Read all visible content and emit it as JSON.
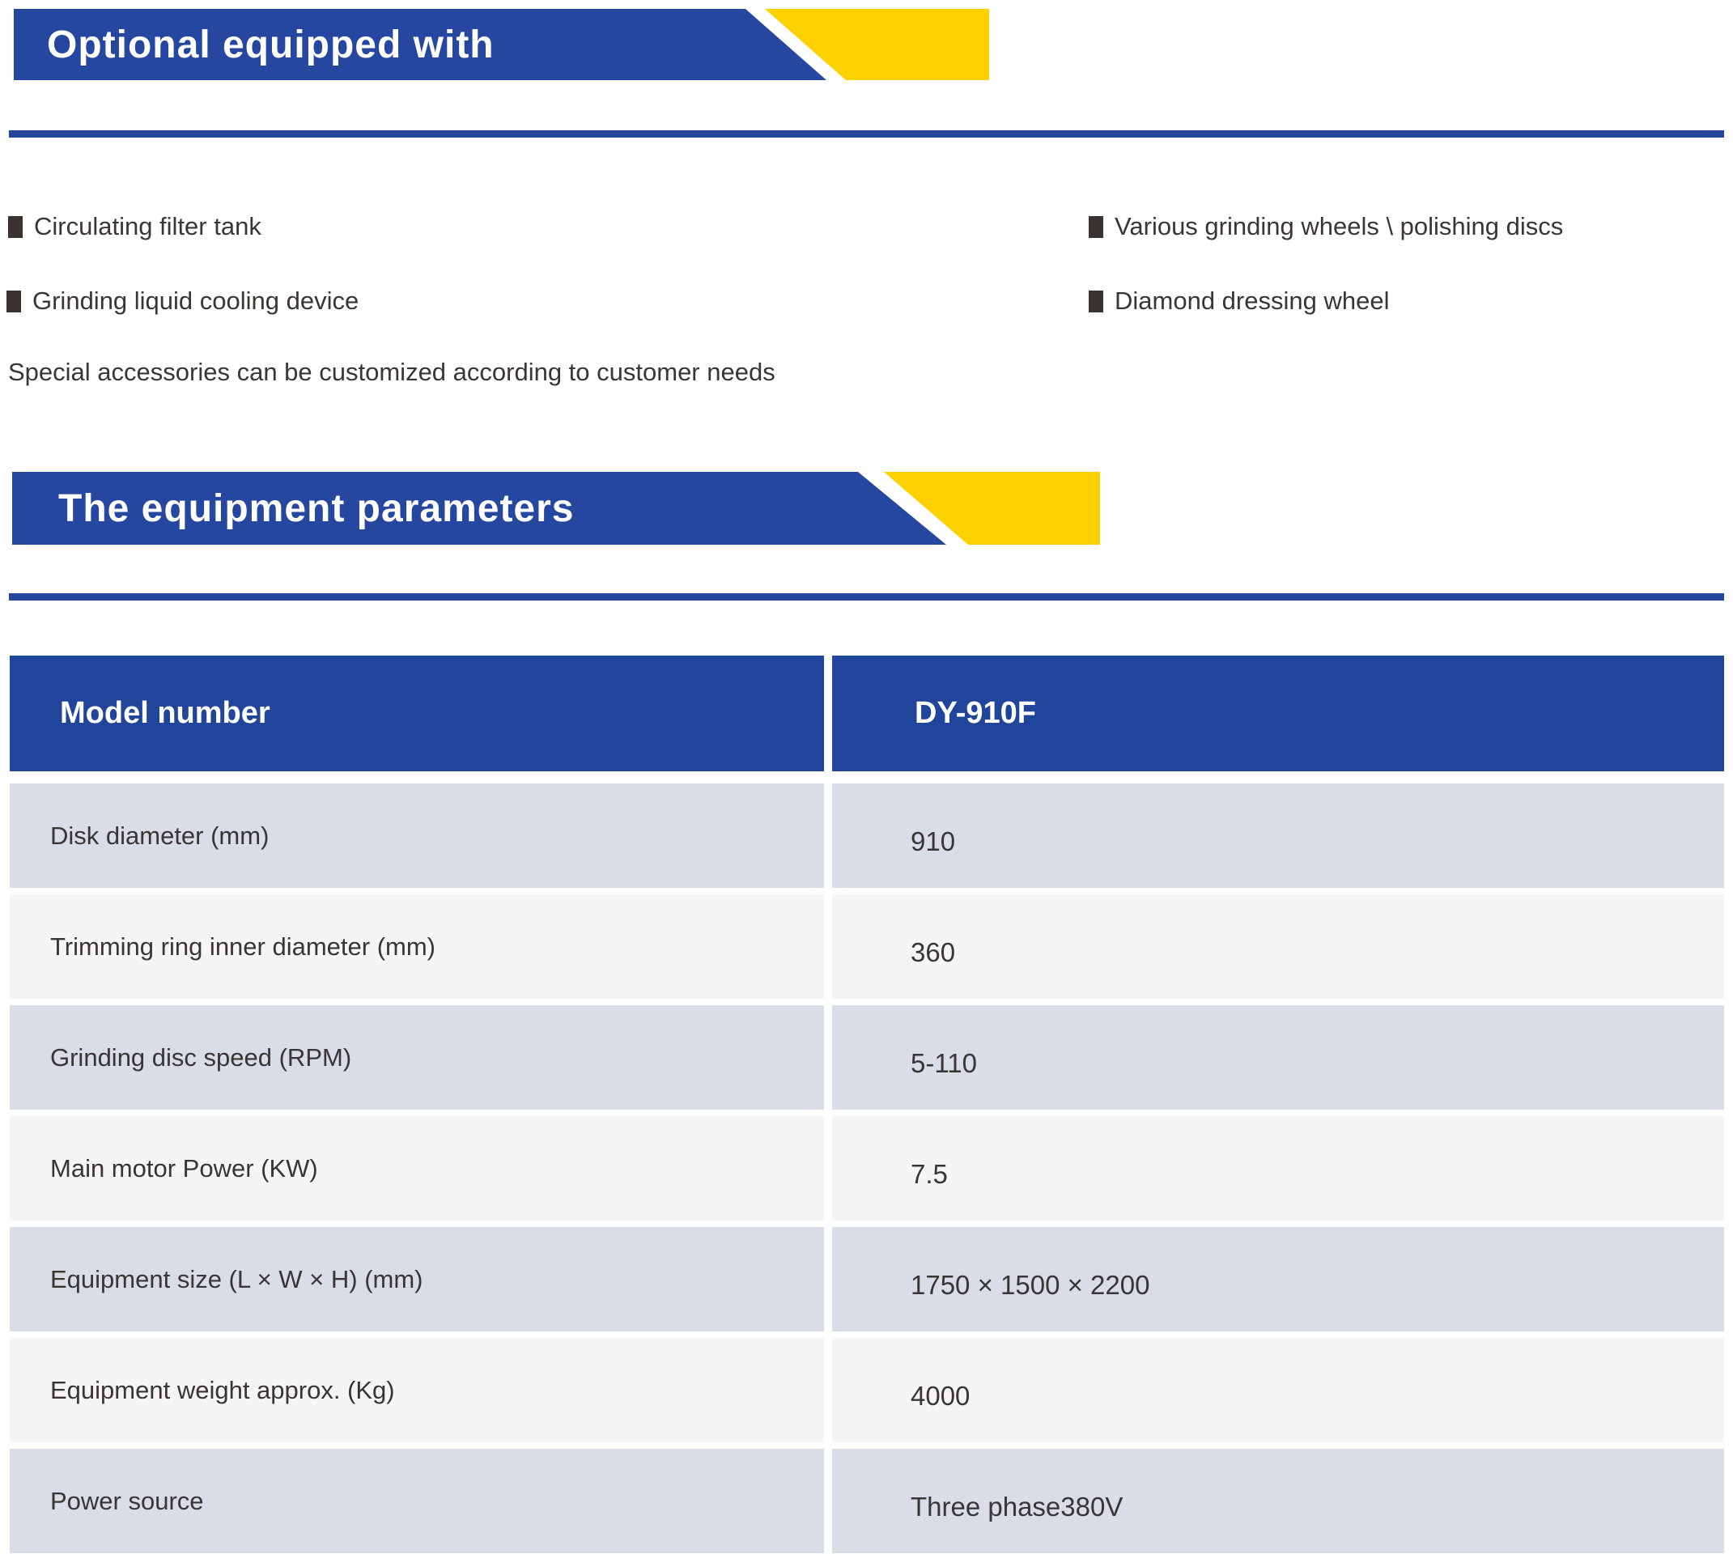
{
  "colors": {
    "banner_blue": "#25479f",
    "accent_yellow": "#fdd000",
    "separator_blue": "#24459c",
    "table_header_blue": "#21459a",
    "row_shade_light_blue": "#d8dde8",
    "row_shade_light_gray": "#f5f5f6",
    "body_text": "#3a3534",
    "banner_text": "#ffffff"
  },
  "sections": {
    "optional": {
      "title": "Optional equipped with",
      "items": [
        {
          "label": "Circulating filter tank"
        },
        {
          "label": "Grinding liquid cooling device"
        },
        {
          "label": "Various grinding wheels \\ polishing discs"
        },
        {
          "label": "Diamond dressing wheel"
        }
      ],
      "note": "Special accessories can be customized according to customer needs"
    },
    "parameters": {
      "title": "The equipment parameters",
      "table": {
        "header": {
          "label": "Model number",
          "value": "DY-910F"
        },
        "rows": [
          {
            "label": "Disk diameter (mm)",
            "value": "910"
          },
          {
            "label": "Trimming ring inner diameter (mm)",
            "value": "360"
          },
          {
            "label": "Grinding disc speed (RPM)",
            "value": "5-110"
          },
          {
            "label": "Main motor Power (KW)",
            "value": "7.5"
          },
          {
            "label": "Equipment size (L × W × H) (mm)",
            "value": "1750 × 1500 × 2200"
          },
          {
            "label": "Equipment weight approx. (Kg)",
            "value": "4000"
          },
          {
            "label": "Power source",
            "value": "Three phase380V"
          }
        ]
      }
    }
  }
}
